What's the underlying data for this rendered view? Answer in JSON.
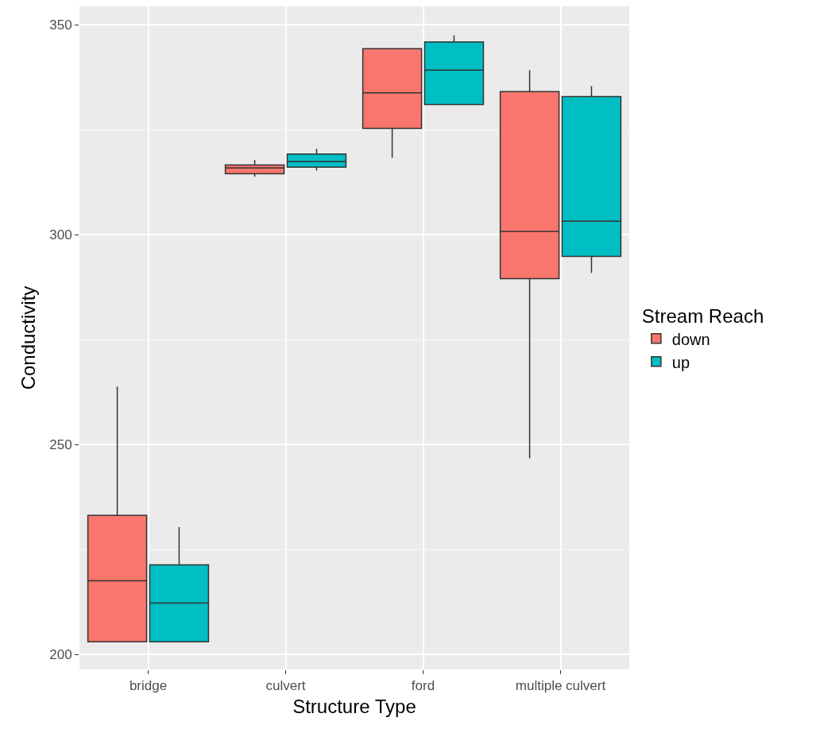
{
  "chart_data": {
    "type": "box",
    "xlabel": "Structure Type",
    "ylabel": "Conductivity",
    "legend_title": "Stream Reach",
    "legend": "right",
    "grid": true,
    "categories": [
      "bridge",
      "culvert",
      "ford",
      "multiple culvert"
    ],
    "ylim": [
      196.4,
      354.4
    ],
    "yticks": [
      200,
      250,
      300,
      350
    ],
    "series": [
      {
        "name": "down",
        "color": "#f8766d",
        "boxes": [
          {
            "low": 203,
            "q1": 203,
            "median": 217.5,
            "q3": 233.1,
            "high": 263.8
          },
          {
            "low": 313.8,
            "q1": 314.5,
            "median": 315.9,
            "q3": 316.6,
            "high": 317.8
          },
          {
            "low": 318.3,
            "q1": 325.3,
            "median": 333.8,
            "q3": 344.3,
            "high": 344.3
          },
          {
            "low": 246.7,
            "q1": 289.5,
            "median": 300.8,
            "q3": 334.1,
            "high": 339.2
          }
        ]
      },
      {
        "name": "up",
        "color": "#00bfc4",
        "boxes": [
          {
            "low": 203,
            "q1": 203,
            "median": 212.2,
            "q3": 221.3,
            "high": 230.3
          },
          {
            "low": 315.3,
            "q1": 316.1,
            "median": 317.4,
            "q3": 319.2,
            "high": 320.5
          },
          {
            "low": 331,
            "q1": 331,
            "median": 339.2,
            "q3": 345.9,
            "high": 347.5
          },
          {
            "low": 290.9,
            "q1": 294.8,
            "median": 303.2,
            "q3": 332.9,
            "high": 335.4
          }
        ]
      }
    ]
  }
}
